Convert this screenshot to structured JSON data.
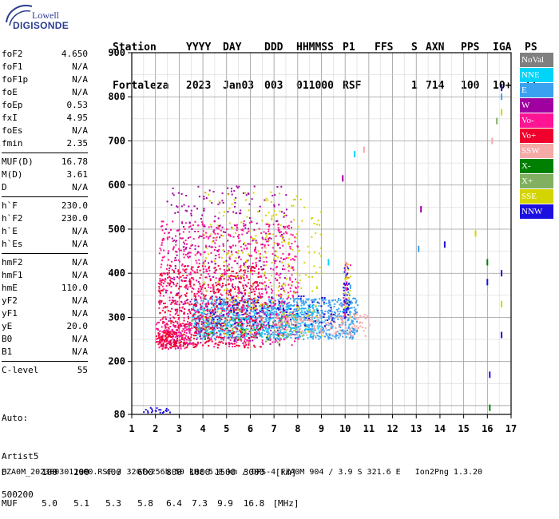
{
  "logo": {
    "top": "Lowell",
    "bottom": "DIGISONDE"
  },
  "header": {
    "row1": [
      "Station",
      "YYYY",
      "DAY",
      "DDD",
      "HHMMSS",
      "P1",
      "FFS",
      "S",
      "AXN",
      "PPS",
      "IGA",
      "PS"
    ],
    "row2": [
      "Fortaleza",
      "2023",
      "Jan03",
      "003",
      "011000",
      "RSF",
      "",
      "1",
      "714",
      "100",
      "10+",
      "11"
    ]
  },
  "params": {
    "group1": [
      {
        "label": "foF2",
        "value": "4.650"
      },
      {
        "label": "foF1",
        "value": "N/A"
      },
      {
        "label": "foF1p",
        "value": "N/A"
      },
      {
        "label": "foE",
        "value": "N/A"
      },
      {
        "label": "foEp",
        "value": "0.53"
      },
      {
        "label": "fxI",
        "value": "4.95"
      },
      {
        "label": "foEs",
        "value": "N/A"
      },
      {
        "label": "fmin",
        "value": "2.35"
      }
    ],
    "group2": [
      {
        "label": "MUF(D)",
        "value": "16.78"
      },
      {
        "label": "M(D)",
        "value": "3.61"
      },
      {
        "label": "D",
        "value": "N/A"
      }
    ],
    "group3": [
      {
        "label": "h`F",
        "value": "230.0"
      },
      {
        "label": "h`F2",
        "value": "230.0"
      },
      {
        "label": "h`E",
        "value": "N/A"
      },
      {
        "label": "h`Es",
        "value": "N/A"
      }
    ],
    "group4": [
      {
        "label": "hmF2",
        "value": "N/A"
      },
      {
        "label": "hmF1",
        "value": "N/A"
      },
      {
        "label": "hmE",
        "value": "110.0"
      },
      {
        "label": "yF2",
        "value": "N/A"
      },
      {
        "label": "yF1",
        "value": "N/A"
      },
      {
        "label": "yE",
        "value": "20.0"
      },
      {
        "label": "B0",
        "value": "N/A"
      },
      {
        "label": "B1",
        "value": "N/A"
      }
    ],
    "group5": [
      {
        "label": "C-level",
        "value": "55"
      }
    ]
  },
  "auto": {
    "line1": "Auto:",
    "line2": "Artist5",
    "line3": "500200"
  },
  "legend": [
    {
      "label": "NoVal",
      "color": "#7f7f7f",
      "text_color": "#ffffff"
    },
    {
      "label": "NNE",
      "color": "#00d4f8",
      "text_color": "#ffffff"
    },
    {
      "label": "E",
      "color": "#3aa0f0",
      "text_color": "#ffffff"
    },
    {
      "label": "W",
      "color": "#a000a0",
      "text_color": "#ffffff"
    },
    {
      "label": "Vo-",
      "color": "#ff1493",
      "text_color": "#ffffff"
    },
    {
      "label": "Vo+",
      "color": "#f0002c",
      "text_color": "#ffffff"
    },
    {
      "label": "SSW",
      "color": "#f5aaa8",
      "text_color": "#ffffff"
    },
    {
      "label": "X-",
      "color": "#008000",
      "text_color": "#ffffff"
    },
    {
      "label": "X+",
      "color": "#80b060",
      "text_color": "#ffffff"
    },
    {
      "label": "SSE",
      "color": "#d4d400",
      "text_color": "#ffffff"
    },
    {
      "label": "NNW",
      "color": "#1c10e0",
      "text_color": "#ffffff"
    }
  ],
  "scale": {
    "row1_label": "D",
    "row1_values": [
      "100",
      "200",
      "400",
      "600",
      "800",
      "1000",
      "1500",
      "3000",
      "[km]"
    ],
    "row2_label": "MUF",
    "row2_values": [
      "5.0",
      "5.1",
      "5.3",
      "5.8",
      "6.4",
      "7.3",
      "9.9",
      "16.8",
      "[MHz]"
    ]
  },
  "footer": "FZA0M_2023003011000.RSF / 320fx256h 50 kHz 5.0 km / DPS-4 FZA0M 904 / 3.9 S 321.6 E   Ion2Png 1.3.20",
  "chart_data": {
    "type": "scatter",
    "title": "",
    "xlabel": "",
    "ylabel": "",
    "xlim": [
      1,
      17
    ],
    "ylim": [
      80,
      900
    ],
    "x_ticks": [
      1,
      2,
      3,
      4,
      5,
      6,
      7,
      8,
      9,
      10,
      11,
      12,
      13,
      14,
      15,
      16,
      17
    ],
    "y_ticks": [
      80,
      200,
      300,
      400,
      500,
      600,
      700,
      800,
      900
    ],
    "grid": true,
    "legend_position": "right",
    "series": [
      {
        "name": "NNE",
        "color": "#00d4f8",
        "regions": [
          {
            "x": [
              3.5,
              9.0
            ],
            "y": [
              255,
              330
            ],
            "density": 0.35
          }
        ],
        "points": [
          {
            "x": 10.4,
            "y": 670
          },
          {
            "x": 9.3,
            "y": 425
          }
        ]
      },
      {
        "name": "E",
        "color": "#3aa0f0",
        "regions": [
          {
            "x": [
              3.6,
              10.5
            ],
            "y": [
              252,
              345
            ],
            "density": 0.55
          },
          {
            "x": 10.0,
            "y": [
              330,
              375
            ],
            "density": 0.4
          }
        ],
        "points": [
          {
            "x": 13.1,
            "y": 455
          },
          {
            "x": 16.6,
            "y": 800
          }
        ]
      },
      {
        "name": "W",
        "color": "#a000a0",
        "regions": [
          {
            "x": [
              2.4,
              7.5
            ],
            "y": [
              240,
              600
            ],
            "density": 0.08
          },
          {
            "x": [
              2.2,
              3.0
            ],
            "y": [
              232,
              270
            ],
            "density": 0.2
          }
        ],
        "points": [
          {
            "x": 9.9,
            "y": 615
          },
          {
            "x": 13.2,
            "y": 545
          }
        ]
      },
      {
        "name": "Vo-",
        "color": "#ff1493",
        "regions": [
          {
            "x": [
              2.1,
              8.0
            ],
            "y": [
              235,
              520
            ],
            "density": 0.18
          },
          {
            "x": [
              2.0,
              3.5
            ],
            "y": [
              230,
              290
            ],
            "density": 0.45
          },
          {
            "x": 10.0,
            "y": [
              330,
              425
            ],
            "density": 0.3
          }
        ],
        "points": [
          {
            "x": 10.0,
            "y": 305
          }
        ]
      },
      {
        "name": "Vo+",
        "color": "#f0002c",
        "regions": [
          {
            "x": [
              2.1,
              6.5
            ],
            "y": [
              232,
              420
            ],
            "density": 0.22
          },
          {
            "x": [
              2.0,
              3.2
            ],
            "y": [
              230,
              270
            ],
            "density": 0.5
          }
        ],
        "points": []
      },
      {
        "name": "SSW",
        "color": "#f5aaa8",
        "regions": [
          {
            "x": [
              7.0,
              11.0
            ],
            "y": [
              258,
              310
            ],
            "density": 0.3
          }
        ],
        "points": [
          {
            "x": 10.8,
            "y": 680
          },
          {
            "x": 16.2,
            "y": 700
          }
        ]
      },
      {
        "name": "X-",
        "color": "#008000",
        "regions": [
          {
            "x": [
              4.0,
              7.5
            ],
            "y": [
              240,
              300
            ],
            "density": 0.05
          }
        ],
        "points": [
          {
            "x": 16.0,
            "y": 425
          },
          {
            "x": 16.1,
            "y": 95
          }
        ]
      },
      {
        "name": "X+",
        "color": "#80b060",
        "regions": [
          {
            "x": [
              3.0,
              8.0
            ],
            "y": [
              245,
              310
            ],
            "density": 0.05
          }
        ],
        "points": [
          {
            "x": 16.4,
            "y": 745
          }
        ]
      },
      {
        "name": "SSE",
        "color": "#d4d400",
        "regions": [
          {
            "x": [
              4.0,
              9.0
            ],
            "y": [
              255,
              590
            ],
            "density": 0.06
          },
          {
            "x": 10.0,
            "y": [
              300,
              430
            ],
            "density": 0.2
          }
        ],
        "points": [
          {
            "x": 15.5,
            "y": 490
          },
          {
            "x": 16.6,
            "y": 330
          },
          {
            "x": 16.6,
            "y": 765
          }
        ]
      },
      {
        "name": "NNW",
        "color": "#1c10e0",
        "regions": [
          {
            "x": [
              4.2,
              9.5
            ],
            "y": [
              280,
              350
            ],
            "density": 0.1
          },
          {
            "x": 10.0,
            "y": [
              300,
              420
            ],
            "density": 0.35
          },
          {
            "x": [
              1.4,
              2.6
            ],
            "y": [
              85,
              98
            ],
            "density": 0.5
          }
        ],
        "points": [
          {
            "x": 14.2,
            "y": 465
          },
          {
            "x": 16.0,
            "y": 380
          },
          {
            "x": 16.1,
            "y": 170
          },
          {
            "x": 16.6,
            "y": 400
          },
          {
            "x": 16.6,
            "y": 260
          },
          {
            "x": 16.6,
            "y": 820
          }
        ]
      }
    ]
  }
}
